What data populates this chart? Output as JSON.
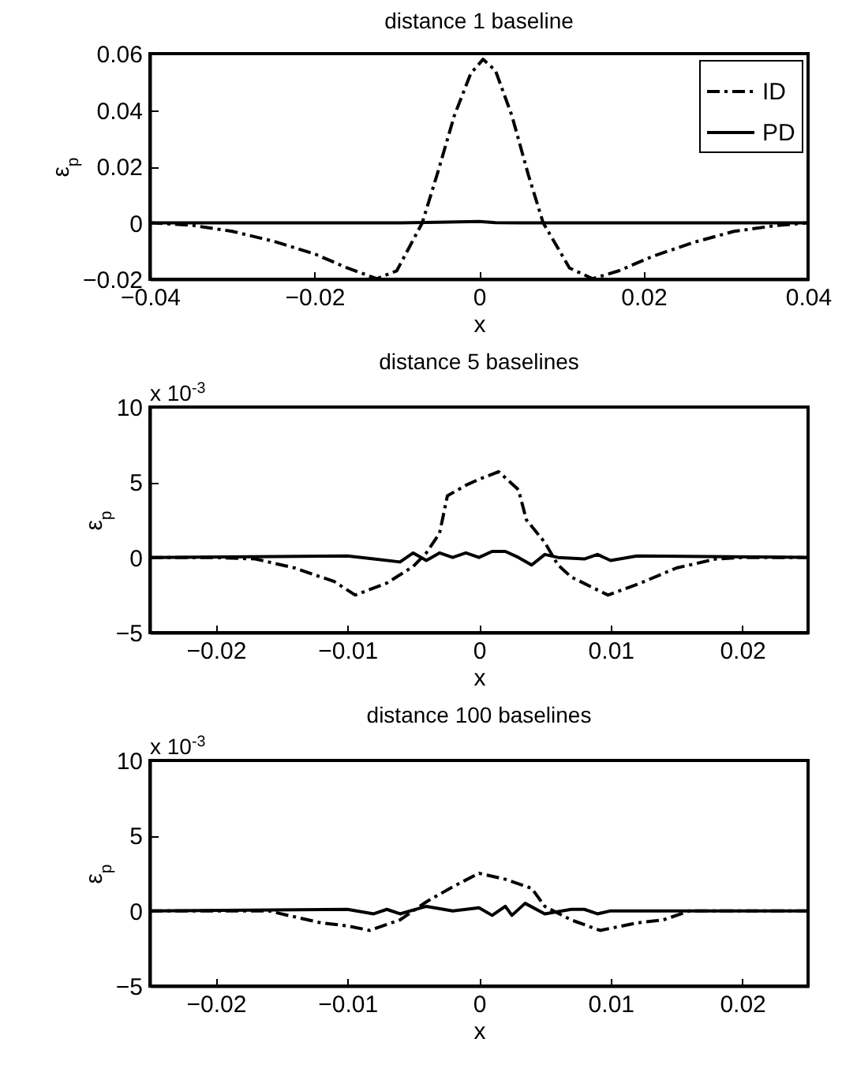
{
  "chart_data": [
    {
      "type": "line",
      "title": "distance 1 baseline",
      "xlabel": "x",
      "ylabel": "ε$_{p}$",
      "xlim": [
        -0.04,
        0.04
      ],
      "xticks": [
        -0.04,
        -0.02,
        0,
        0.02,
        0.04
      ],
      "ylim": [
        -0.02,
        0.06
      ],
      "yticks": [
        -0.02,
        0,
        0.02,
        0.04,
        0.06
      ],
      "grid": false,
      "legend": "top right",
      "series": [
        {
          "name": "ID",
          "color": "#000000",
          "line_style": "dashdot",
          "x": [
            -0.04,
            -0.035,
            -0.03,
            -0.025,
            -0.02,
            -0.016,
            -0.0124,
            -0.01,
            -0.0069,
            -0.005,
            -0.003,
            -0.001,
            0.0005,
            0.002,
            0.004,
            0.006,
            0.0078,
            0.011,
            0.0138,
            0.017,
            0.021,
            0.026,
            0.031,
            0.036,
            0.04
          ],
          "values": [
            0,
            -0.0008,
            -0.003,
            -0.0065,
            -0.011,
            -0.016,
            -0.0198,
            -0.017,
            0,
            0.018,
            0.038,
            0.053,
            0.058,
            0.054,
            0.038,
            0.017,
            0,
            -0.016,
            -0.0198,
            -0.017,
            -0.012,
            -0.007,
            -0.003,
            -0.001,
            0
          ]
        },
        {
          "name": "PD",
          "color": "#000000",
          "line_style": "solid",
          "x": [
            -0.04,
            -0.01,
            -0.005,
            0,
            0.002,
            0.005,
            0.04
          ],
          "values": [
            0,
            0,
            0.0002,
            0.0005,
            0.0001,
            0,
            0
          ]
        }
      ]
    },
    {
      "type": "line",
      "title": "distance 5 baselines",
      "xlabel": "x",
      "ylabel": "ε$_{p}$",
      "annotations": [
        "x 10$^{-3}$"
      ],
      "xlim": [
        -0.025,
        0.025
      ],
      "xticks": [
        -0.02,
        -0.01,
        0,
        0.01,
        0.02
      ],
      "ylim": [
        -5,
        10
      ],
      "yticks": [
        -5,
        0,
        5,
        10
      ],
      "grid": false,
      "series": [
        {
          "color": "#000000",
          "line_style": "dashdot",
          "x": [
            -0.025,
            -0.02,
            -0.017,
            -0.014,
            -0.011,
            -0.0094,
            -0.007,
            -0.005,
            -0.004,
            -0.003,
            -0.0024,
            -0.001,
            0,
            0.0015,
            0.003,
            0.0036,
            0.005,
            0.006,
            0.007,
            0.0098,
            0.012,
            0.015,
            0.018,
            0.02,
            0.025
          ],
          "values": [
            0,
            0,
            -0.1,
            -0.7,
            -1.6,
            -2.5,
            -1.7,
            -0.6,
            0.3,
            1.6,
            4.1,
            4.8,
            5.2,
            5.7,
            4.5,
            2.5,
            1,
            -0.5,
            -1.3,
            -2.5,
            -1.8,
            -0.7,
            -0.1,
            0,
            0
          ]
        },
        {
          "color": "#000000",
          "line_style": "solid",
          "x": [
            -0.025,
            -0.01,
            -0.008,
            -0.006,
            -0.005,
            -0.004,
            -0.003,
            -0.002,
            -0.001,
            0,
            0.001,
            0.002,
            0.003,
            0.004,
            0.005,
            0.006,
            0.008,
            0.009,
            0.01,
            0.012,
            0.025
          ],
          "values": [
            0,
            0.1,
            -0.1,
            -0.3,
            0.3,
            -0.2,
            0.3,
            0,
            0.3,
            0,
            0.4,
            0.4,
            0,
            -0.5,
            0.2,
            0,
            -0.1,
            0.2,
            -0.2,
            0.1,
            0
          ]
        }
      ]
    },
    {
      "type": "line",
      "title": "distance 100 baselines",
      "xlabel": "x",
      "ylabel": "ε$_{p}$",
      "annotations": [
        "x 10$^{-3}$"
      ],
      "xlim": [
        -0.025,
        0.025
      ],
      "xticks": [
        -0.02,
        -0.01,
        0,
        0.01,
        0.02
      ],
      "ylim": [
        -5,
        10
      ],
      "yticks": [
        -5,
        0,
        5,
        10
      ],
      "grid": false,
      "series": [
        {
          "color": "#000000",
          "line_style": "dashdot",
          "x": [
            -0.025,
            -0.016,
            -0.014,
            -0.012,
            -0.01,
            -0.0083,
            -0.006,
            -0.004,
            -0.002,
            0,
            0.002,
            0.004,
            0.005,
            0.007,
            0.0092,
            0.012,
            0.014,
            0.016,
            0.025
          ],
          "values": [
            0,
            0,
            -0.4,
            -0.8,
            -1,
            -1.3,
            -0.6,
            0.6,
            1.6,
            2.5,
            2.1,
            1.5,
            0.3,
            -0.6,
            -1.3,
            -0.8,
            -0.6,
            0,
            0
          ]
        },
        {
          "color": "#000000",
          "line_style": "solid",
          "x": [
            -0.025,
            -0.01,
            -0.008,
            -0.007,
            -0.006,
            -0.004,
            -0.002,
            0,
            0.001,
            0.002,
            0.0025,
            0.0035,
            0.005,
            0.007,
            0.008,
            0.009,
            0.01,
            0.025
          ],
          "values": [
            0,
            0.1,
            -0.2,
            0.1,
            -0.2,
            0.3,
            0,
            0.2,
            -0.3,
            0.3,
            -0.3,
            0.5,
            -0.2,
            0.1,
            0.1,
            -0.2,
            0,
            0
          ]
        }
      ]
    }
  ]
}
